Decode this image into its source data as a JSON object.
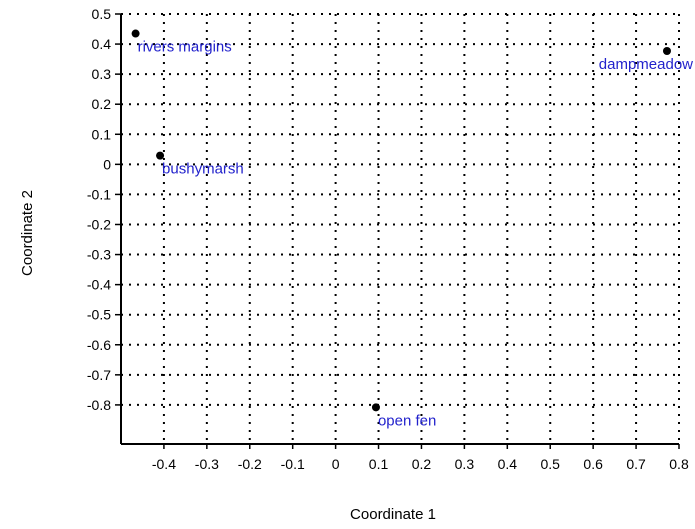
{
  "chart_data": {
    "type": "scatter",
    "title": "",
    "xlabel": "Coordinate 1",
    "ylabel": "Coordinate 2",
    "xlim": [
      -0.5,
      0.8
    ],
    "ylim": [
      -0.93,
      0.5
    ],
    "x_ticks": [
      "-0.4",
      "-0.3",
      "-0.2",
      "-0.1",
      "0",
      "0.1",
      "0.2",
      "0.3",
      "0.4",
      "0.5",
      "0.6",
      "0.7",
      "0.8"
    ],
    "y_ticks": [
      "0.5",
      "0.4",
      "0.3",
      "0.2",
      "0.1",
      "0",
      "-0.1",
      "-0.2",
      "-0.3",
      "-0.4",
      "-0.5",
      "-0.6",
      "-0.7",
      "-0.8"
    ],
    "grid": true,
    "legend": "none",
    "colors": {
      "point": "#000000",
      "label": "#2222cc",
      "grid": "#000000",
      "axis": "#000000"
    },
    "points": [
      {
        "label": "rivers margins",
        "x": -0.466,
        "y": 0.435
      },
      {
        "label": "dampmeadow",
        "x": 0.772,
        "y": 0.377
      },
      {
        "label": "bushymarsh",
        "x": -0.409,
        "y": 0.029
      },
      {
        "label": "open fen",
        "x": 0.094,
        "y": -0.808
      }
    ]
  }
}
